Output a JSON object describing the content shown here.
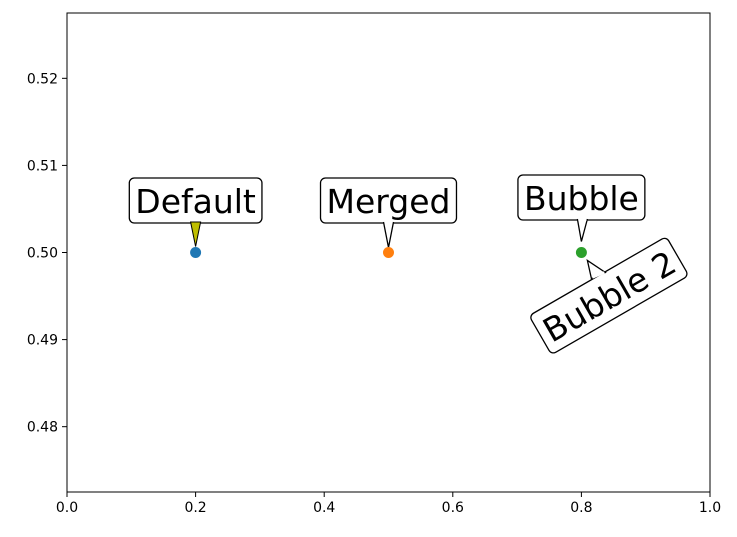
{
  "chart_data": {
    "type": "scatter",
    "title": "",
    "xlabel": "",
    "ylabel": "",
    "xlim": [
      0.0,
      1.0
    ],
    "ylim": [
      0.4725,
      0.5275
    ],
    "grid": false,
    "x_ticks": [
      "0.0",
      "0.2",
      "0.4",
      "0.6",
      "0.8",
      "1.0"
    ],
    "y_ticks": [
      "0.48",
      "0.49",
      "0.50",
      "0.51",
      "0.52"
    ],
    "points": [
      {
        "x": 0.2,
        "y": 0.5,
        "color": "#1f77b4"
      },
      {
        "x": 0.5,
        "y": 0.5,
        "color": "#ff7f0e"
      },
      {
        "x": 0.8,
        "y": 0.5,
        "color": "#2ca02c"
      }
    ],
    "annotations": [
      {
        "text": "Default",
        "x": 0.2,
        "y": 0.5,
        "style": "wedge",
        "wedge_color": "#bfbf00"
      },
      {
        "text": "Merged",
        "x": 0.5,
        "y": 0.5,
        "style": "merged-tail"
      },
      {
        "text": "Bubble",
        "x": 0.8,
        "y": 0.5,
        "style": "bubble-tail"
      },
      {
        "text": "Bubble 2",
        "x": 0.8,
        "y": 0.5,
        "style": "bubble-tail-rotated",
        "rotation_deg": 30
      }
    ]
  }
}
